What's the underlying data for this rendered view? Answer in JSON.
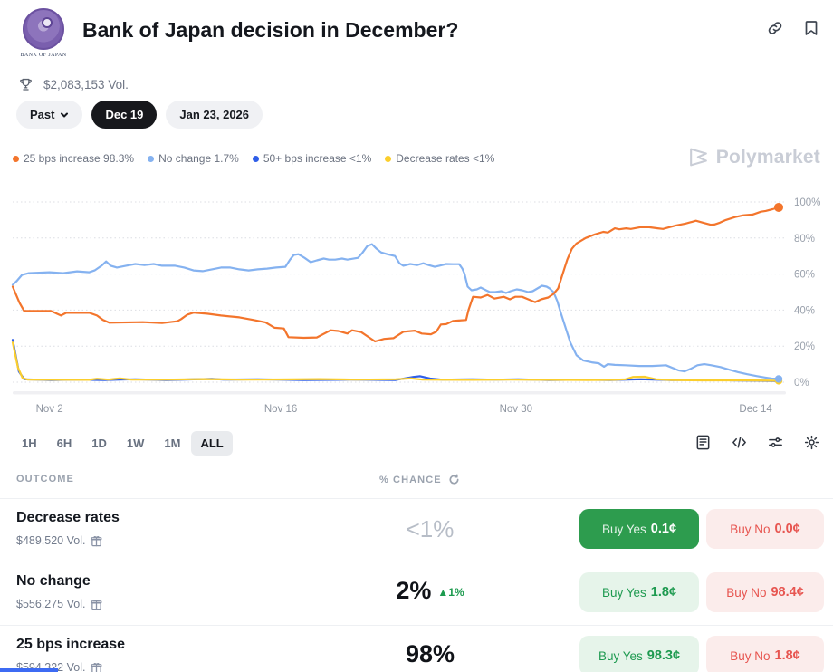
{
  "header": {
    "title": "Bank of Japan decision in December?",
    "logo_caption": "BANK OF JAPAN"
  },
  "stats": {
    "volume": "$2,083,153 Vol."
  },
  "filters": {
    "past_label": "Past",
    "date_pills": [
      {
        "label": "Dec 19",
        "active": true
      },
      {
        "label": "Jan 23, 2026",
        "active": false
      }
    ]
  },
  "legend": [
    {
      "label": "25 bps increase 98.3%",
      "color": "#f3752c"
    },
    {
      "label": "No change 1.7%",
      "color": "#85b2f0"
    },
    {
      "label": "50+ bps increase <1%",
      "color": "#2f5ee8"
    },
    {
      "label": "Decrease rates <1%",
      "color": "#fbce2c"
    }
  ],
  "watermark": "Polymarket",
  "chart_data": {
    "type": "line",
    "xlabel": "",
    "ylabel": "",
    "ylim": [
      0,
      100
    ],
    "grid": "dotted-horizontal",
    "legend_position": "top-left",
    "y_ticks": [
      0,
      20,
      40,
      60,
      80,
      100
    ],
    "y_tick_suffix": "%",
    "x_ticks": [
      {
        "t": 4.8,
        "label": "Nov 2"
      },
      {
        "t": 35.0,
        "label": "Nov 16"
      },
      {
        "t": 65.7,
        "label": "Nov 30"
      },
      {
        "t": 97.0,
        "label": "Dec 14"
      }
    ],
    "series": [
      {
        "name": "50+ bps increase",
        "color": "#2f5ee8",
        "end_dot": false,
        "points": [
          [
            0,
            23.5
          ],
          [
            0.8,
            6
          ],
          [
            1.5,
            1.6
          ],
          [
            5,
            1.2
          ],
          [
            8,
            1.4
          ],
          [
            12,
            1.2
          ],
          [
            16,
            1.6
          ],
          [
            20,
            1.2
          ],
          [
            26,
            1.8
          ],
          [
            27.5,
            1.4
          ],
          [
            32,
            1.6
          ],
          [
            38,
            1.2
          ],
          [
            44,
            1.4
          ],
          [
            50,
            1.2
          ],
          [
            52.3,
            2.9
          ],
          [
            53.2,
            3.3
          ],
          [
            54.5,
            2
          ],
          [
            56,
            1.4
          ],
          [
            60,
            1.6
          ],
          [
            63,
            1.4
          ],
          [
            66,
            1.6
          ],
          [
            70,
            1.2
          ],
          [
            74,
            1.4
          ],
          [
            78,
            1.2
          ],
          [
            82,
            1.6
          ],
          [
            86,
            1.2
          ],
          [
            90,
            1.4
          ],
          [
            94,
            1
          ],
          [
            97,
            0.8
          ],
          [
            100,
            0.6
          ]
        ]
      },
      {
        "name": "Decrease rates",
        "color": "#fbce2c",
        "end_dot": true,
        "points": [
          [
            0,
            22
          ],
          [
            0.7,
            8
          ],
          [
            1.3,
            2.2
          ],
          [
            2,
            1.4
          ],
          [
            10,
            1.3
          ],
          [
            11,
            1.9
          ],
          [
            12.5,
            1.4
          ],
          [
            14,
            2.1
          ],
          [
            15.5,
            1.4
          ],
          [
            20,
            1.4
          ],
          [
            25,
            1.7
          ],
          [
            30,
            1.4
          ],
          [
            35,
            1.5
          ],
          [
            40,
            1.7
          ],
          [
            45,
            1.4
          ],
          [
            50,
            1.6
          ],
          [
            52,
            2.1
          ],
          [
            53.5,
            1.4
          ],
          [
            60,
            1.3
          ],
          [
            65,
            1.4
          ],
          [
            70,
            1.3
          ],
          [
            75,
            1.2
          ],
          [
            78.5,
            1.3
          ],
          [
            80,
            1.6
          ],
          [
            81,
            2.9
          ],
          [
            82.5,
            3
          ],
          [
            84,
            1.6
          ],
          [
            86,
            1.2
          ],
          [
            90,
            1
          ],
          [
            95,
            1
          ],
          [
            100,
            0.8
          ]
        ]
      },
      {
        "name": "No change",
        "color": "#85b2f0",
        "end_dot": true,
        "points": [
          [
            0,
            54
          ],
          [
            0.5,
            56
          ],
          [
            1.2,
            59.5
          ],
          [
            2.1,
            60.5
          ],
          [
            4.8,
            61
          ],
          [
            6.6,
            60.5
          ],
          [
            8.4,
            61.5
          ],
          [
            10,
            61
          ],
          [
            10.7,
            62
          ],
          [
            11.6,
            64.6
          ],
          [
            12.2,
            67
          ],
          [
            12.8,
            64.6
          ],
          [
            13.6,
            63.6
          ],
          [
            14.8,
            64.6
          ],
          [
            16,
            65.6
          ],
          [
            17.2,
            65
          ],
          [
            18.4,
            65.6
          ],
          [
            19.5,
            64.6
          ],
          [
            21.2,
            64.6
          ],
          [
            22.4,
            63.6
          ],
          [
            23.6,
            62
          ],
          [
            24.8,
            61.6
          ],
          [
            26,
            62.6
          ],
          [
            27.2,
            63.6
          ],
          [
            28.4,
            63.6
          ],
          [
            29.6,
            62.6
          ],
          [
            30.8,
            62
          ],
          [
            32,
            62.6
          ],
          [
            33.2,
            63
          ],
          [
            34.4,
            63.6
          ],
          [
            35.6,
            64
          ],
          [
            36.2,
            68
          ],
          [
            36.7,
            70.6
          ],
          [
            37.3,
            71
          ],
          [
            38.1,
            69
          ],
          [
            38.9,
            66.6
          ],
          [
            39.7,
            67.6
          ],
          [
            40.6,
            68.6
          ],
          [
            41.3,
            68
          ],
          [
            42.1,
            68
          ],
          [
            43,
            68.6
          ],
          [
            43.7,
            68
          ],
          [
            45.1,
            69
          ],
          [
            45.7,
            72
          ],
          [
            46.3,
            75.6
          ],
          [
            46.9,
            76.6
          ],
          [
            47.5,
            74
          ],
          [
            48.1,
            72
          ],
          [
            48.9,
            71
          ],
          [
            49.9,
            70
          ],
          [
            50.5,
            66
          ],
          [
            51,
            64.6
          ],
          [
            51.9,
            65.6
          ],
          [
            52.8,
            65
          ],
          [
            53.6,
            66
          ],
          [
            54.3,
            65
          ],
          [
            55.1,
            64
          ],
          [
            55.7,
            64.6
          ],
          [
            56.6,
            65.6
          ],
          [
            57.5,
            65.5
          ],
          [
            58.3,
            65.5
          ],
          [
            58.7,
            63
          ],
          [
            59,
            60
          ],
          [
            59.4,
            53
          ],
          [
            59.9,
            51
          ],
          [
            60.6,
            51.5
          ],
          [
            61.1,
            52.5
          ],
          [
            61.8,
            51
          ],
          [
            62.3,
            50
          ],
          [
            63,
            50
          ],
          [
            63.8,
            50.5
          ],
          [
            64.4,
            49.5
          ],
          [
            65,
            50.5
          ],
          [
            65.8,
            51.5
          ],
          [
            66.5,
            51
          ],
          [
            67.3,
            50
          ],
          [
            67.9,
            50.5
          ],
          [
            68.5,
            52
          ],
          [
            69.1,
            53.5
          ],
          [
            69.7,
            53
          ],
          [
            70.1,
            52
          ],
          [
            70.6,
            50
          ],
          [
            71.1,
            45
          ],
          [
            71.6,
            38
          ],
          [
            72.2,
            30
          ],
          [
            72.8,
            22
          ],
          [
            73.6,
            15
          ],
          [
            74.5,
            12
          ],
          [
            75.6,
            11
          ],
          [
            76.5,
            10.5
          ],
          [
            77.2,
            8.6
          ],
          [
            77.7,
            10
          ],
          [
            78.6,
            9.6
          ],
          [
            80,
            9.4
          ],
          [
            81.8,
            9
          ],
          [
            83.5,
            9
          ],
          [
            85.3,
            9.4
          ],
          [
            86.9,
            6.6
          ],
          [
            87.7,
            6
          ],
          [
            88.5,
            7.4
          ],
          [
            89.4,
            9.4
          ],
          [
            90.3,
            10
          ],
          [
            91.2,
            9.4
          ],
          [
            92.4,
            8.4
          ],
          [
            93.5,
            7
          ],
          [
            94.7,
            5.6
          ],
          [
            95.9,
            4.4
          ],
          [
            97.1,
            3.4
          ],
          [
            98.2,
            2.6
          ],
          [
            99.1,
            2
          ],
          [
            100,
            1.8
          ]
        ]
      },
      {
        "name": "25 bps increase",
        "color": "#f3752c",
        "end_dot": true,
        "points": [
          [
            0,
            53
          ],
          [
            0.9,
            44
          ],
          [
            1.5,
            39.5
          ],
          [
            5,
            39.5
          ],
          [
            6.3,
            37
          ],
          [
            7,
            38.5
          ],
          [
            10,
            38.5
          ],
          [
            11,
            37
          ],
          [
            11.8,
            34.5
          ],
          [
            12.6,
            33
          ],
          [
            17,
            33.3
          ],
          [
            19.5,
            32.8
          ],
          [
            21.5,
            33.8
          ],
          [
            22,
            35
          ],
          [
            22.8,
            37.5
          ],
          [
            23.6,
            38.6
          ],
          [
            25.4,
            38
          ],
          [
            27.2,
            37
          ],
          [
            29.6,
            36
          ],
          [
            31.3,
            34.6
          ],
          [
            33,
            33.2
          ],
          [
            34.2,
            30.2
          ],
          [
            35.4,
            29.8
          ],
          [
            36,
            25
          ],
          [
            38,
            24.6
          ],
          [
            39.7,
            24.8
          ],
          [
            41.5,
            28.8
          ],
          [
            42.5,
            28.4
          ],
          [
            43.7,
            27
          ],
          [
            44.3,
            28.8
          ],
          [
            45.5,
            27.8
          ],
          [
            47.3,
            22.6
          ],
          [
            48.5,
            24
          ],
          [
            49.7,
            24.4
          ],
          [
            51,
            28
          ],
          [
            52.5,
            28.6
          ],
          [
            53.4,
            27
          ],
          [
            54.6,
            26.6
          ],
          [
            55.3,
            28
          ],
          [
            55.9,
            32
          ],
          [
            56.6,
            32.2
          ],
          [
            57.5,
            34
          ],
          [
            58.2,
            34.2
          ],
          [
            59.2,
            34.5
          ],
          [
            59.5,
            40
          ],
          [
            60.1,
            47.4
          ],
          [
            61.1,
            47
          ],
          [
            62,
            48.4
          ],
          [
            62.9,
            46.4
          ],
          [
            64.1,
            47.4
          ],
          [
            64.9,
            46
          ],
          [
            65.6,
            47.4
          ],
          [
            66.5,
            47.4
          ],
          [
            67.3,
            46
          ],
          [
            68.2,
            44.4
          ],
          [
            69,
            46
          ],
          [
            69.9,
            47
          ],
          [
            70.6,
            49
          ],
          [
            71.2,
            52
          ],
          [
            71.8,
            60
          ],
          [
            72.4,
            68
          ],
          [
            73,
            74
          ],
          [
            73.6,
            77
          ],
          [
            74.8,
            80
          ],
          [
            76,
            82
          ],
          [
            77.1,
            83.4
          ],
          [
            77.7,
            83
          ],
          [
            78.6,
            85.4
          ],
          [
            79.2,
            84.8
          ],
          [
            80.1,
            85.4
          ],
          [
            80.7,
            85
          ],
          [
            81.9,
            86
          ],
          [
            83.1,
            86
          ],
          [
            84.2,
            85.4
          ],
          [
            84.9,
            85
          ],
          [
            85.7,
            86
          ],
          [
            86.6,
            87
          ],
          [
            87.8,
            88
          ],
          [
            88.7,
            89
          ],
          [
            89.2,
            89.6
          ],
          [
            90.2,
            88.4
          ],
          [
            91.1,
            87.4
          ],
          [
            91.6,
            87.5
          ],
          [
            92.3,
            88.5
          ],
          [
            93.1,
            90
          ],
          [
            94.3,
            91.6
          ],
          [
            95.4,
            92.6
          ],
          [
            96.6,
            93
          ],
          [
            97.7,
            94.6
          ],
          [
            98.3,
            95
          ],
          [
            99.2,
            96
          ],
          [
            100,
            97
          ]
        ]
      }
    ]
  },
  "toolbar": {
    "ranges": [
      "1H",
      "6H",
      "1D",
      "1W",
      "1M",
      "ALL"
    ],
    "active_range": "ALL",
    "icons": [
      "news-icon",
      "embed-code-icon",
      "sliders-icon",
      "gear-icon"
    ]
  },
  "table": {
    "outcome_header": "OUTCOME",
    "chance_header": "% CHANCE",
    "rows": [
      {
        "name": "Decrease rates",
        "volume": "$489,520 Vol.",
        "chance": "<1%",
        "buy_yes_label": "Buy Yes",
        "yes_price": "0.1¢",
        "buy_no_label": "Buy No",
        "no_price": "0.0¢"
      },
      {
        "name": "No change",
        "volume": "$556,275 Vol.",
        "chance": "2%",
        "delta_arrow": "▲",
        "delta": "1%",
        "buy_yes_label": "Buy Yes",
        "yes_price": "1.8¢",
        "buy_no_label": "Buy No",
        "no_price": "98.4¢"
      },
      {
        "name": "25 bps increase",
        "volume": "$594,322 Vol.",
        "chance": "98%",
        "buy_yes_label": "Buy Yes",
        "yes_price": "98.3¢",
        "buy_no_label": "Buy No",
        "no_price": "1.8¢"
      }
    ]
  }
}
